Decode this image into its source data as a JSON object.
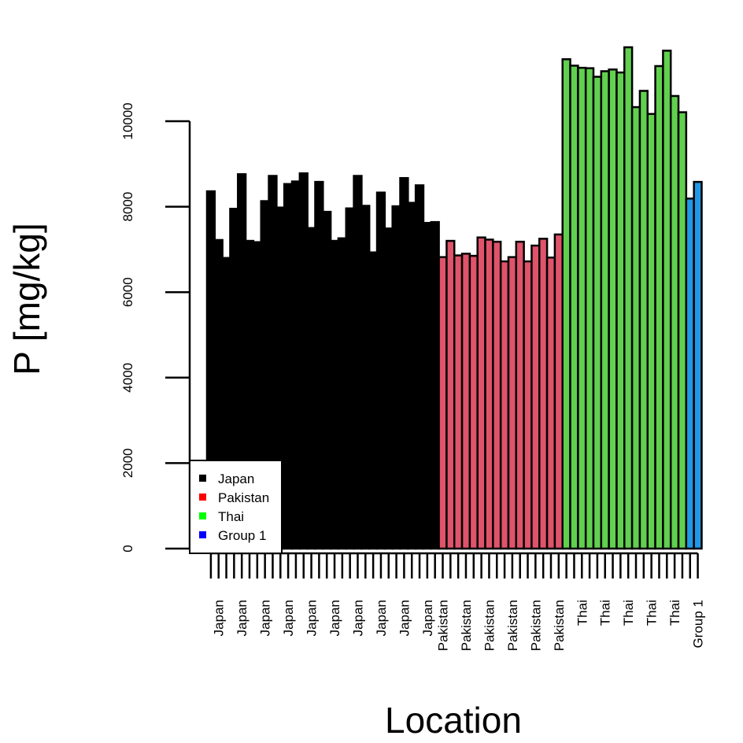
{
  "chart_data": {
    "type": "bar",
    "title": "",
    "xlabel": "Location",
    "ylabel": "P [mg/kg]",
    "ylim": [
      0,
      12000
    ],
    "yticks": [
      0,
      2000,
      4000,
      6000,
      8000,
      10000
    ],
    "grid": false,
    "legend": {
      "position": "bottom-left",
      "entries": [
        {
          "label": "Japan",
          "color": "#000000"
        },
        {
          "label": "Pakistan",
          "color": "#ff0000"
        },
        {
          "label": "Thai",
          "color": "#00ff00"
        },
        {
          "label": "Group 1",
          "color": "#0000ff"
        }
      ]
    },
    "group_colors": {
      "Japan": "#000000",
      "Pakistan": "#df536b",
      "Thai": "#61d04f",
      "Group 1": "#2297e6"
    },
    "bars": [
      {
        "group": "Japan",
        "value": 8360,
        "label": ""
      },
      {
        "group": "Japan",
        "value": 7220,
        "label": "Japan"
      },
      {
        "group": "Japan",
        "value": 6800,
        "label": ""
      },
      {
        "group": "Japan",
        "value": 7950,
        "label": ""
      },
      {
        "group": "Japan",
        "value": 8760,
        "label": "Japan"
      },
      {
        "group": "Japan",
        "value": 7200,
        "label": ""
      },
      {
        "group": "Japan",
        "value": 7170,
        "label": ""
      },
      {
        "group": "Japan",
        "value": 8130,
        "label": "Japan"
      },
      {
        "group": "Japan",
        "value": 8720,
        "label": ""
      },
      {
        "group": "Japan",
        "value": 7980,
        "label": ""
      },
      {
        "group": "Japan",
        "value": 8530,
        "label": "Japan"
      },
      {
        "group": "Japan",
        "value": 8590,
        "label": ""
      },
      {
        "group": "Japan",
        "value": 8780,
        "label": ""
      },
      {
        "group": "Japan",
        "value": 7500,
        "label": "Japan"
      },
      {
        "group": "Japan",
        "value": 8580,
        "label": ""
      },
      {
        "group": "Japan",
        "value": 7880,
        "label": ""
      },
      {
        "group": "Japan",
        "value": 7200,
        "label": "Japan"
      },
      {
        "group": "Japan",
        "value": 7260,
        "label": ""
      },
      {
        "group": "Japan",
        "value": 7960,
        "label": ""
      },
      {
        "group": "Japan",
        "value": 8720,
        "label": "Japan"
      },
      {
        "group": "Japan",
        "value": 8020,
        "label": ""
      },
      {
        "group": "Japan",
        "value": 6930,
        "label": ""
      },
      {
        "group": "Japan",
        "value": 8330,
        "label": "Japan"
      },
      {
        "group": "Japan",
        "value": 7490,
        "label": ""
      },
      {
        "group": "Japan",
        "value": 8010,
        "label": ""
      },
      {
        "group": "Japan",
        "value": 8670,
        "label": "Japan"
      },
      {
        "group": "Japan",
        "value": 8090,
        "label": ""
      },
      {
        "group": "Japan",
        "value": 8500,
        "label": ""
      },
      {
        "group": "Japan",
        "value": 7620,
        "label": "Japan"
      },
      {
        "group": "Japan",
        "value": 7640,
        "label": ""
      },
      {
        "group": "Pakistan",
        "value": 6820,
        "label": "Pakistan"
      },
      {
        "group": "Pakistan",
        "value": 7200,
        "label": ""
      },
      {
        "group": "Pakistan",
        "value": 6860,
        "label": ""
      },
      {
        "group": "Pakistan",
        "value": 6900,
        "label": "Pakistan"
      },
      {
        "group": "Pakistan",
        "value": 6850,
        "label": ""
      },
      {
        "group": "Pakistan",
        "value": 7280,
        "label": ""
      },
      {
        "group": "Pakistan",
        "value": 7230,
        "label": "Pakistan"
      },
      {
        "group": "Pakistan",
        "value": 7180,
        "label": ""
      },
      {
        "group": "Pakistan",
        "value": 6720,
        "label": ""
      },
      {
        "group": "Pakistan",
        "value": 6820,
        "label": "Pakistan"
      },
      {
        "group": "Pakistan",
        "value": 7180,
        "label": ""
      },
      {
        "group": "Pakistan",
        "value": 6720,
        "label": ""
      },
      {
        "group": "Pakistan",
        "value": 7090,
        "label": "Pakistan"
      },
      {
        "group": "Pakistan",
        "value": 7250,
        "label": ""
      },
      {
        "group": "Pakistan",
        "value": 6810,
        "label": ""
      },
      {
        "group": "Pakistan",
        "value": 7350,
        "label": "Pakistan"
      },
      {
        "group": "Thai",
        "value": 11450,
        "label": ""
      },
      {
        "group": "Thai",
        "value": 11300,
        "label": ""
      },
      {
        "group": "Thai",
        "value": 11250,
        "label": "Thai"
      },
      {
        "group": "Thai",
        "value": 11240,
        "label": ""
      },
      {
        "group": "Thai",
        "value": 11040,
        "label": ""
      },
      {
        "group": "Thai",
        "value": 11170,
        "label": "Thai"
      },
      {
        "group": "Thai",
        "value": 11210,
        "label": ""
      },
      {
        "group": "Thai",
        "value": 11140,
        "label": ""
      },
      {
        "group": "Thai",
        "value": 11730,
        "label": "Thai"
      },
      {
        "group": "Thai",
        "value": 10330,
        "label": ""
      },
      {
        "group": "Thai",
        "value": 10710,
        "label": ""
      },
      {
        "group": "Thai",
        "value": 10170,
        "label": "Thai"
      },
      {
        "group": "Thai",
        "value": 11290,
        "label": ""
      },
      {
        "group": "Thai",
        "value": 11650,
        "label": ""
      },
      {
        "group": "Thai",
        "value": 10590,
        "label": "Thai"
      },
      {
        "group": "Thai",
        "value": 10210,
        "label": ""
      },
      {
        "group": "Group 1",
        "value": 8190,
        "label": ""
      },
      {
        "group": "Group 1",
        "value": 8580,
        "label": "Group 1"
      }
    ]
  }
}
